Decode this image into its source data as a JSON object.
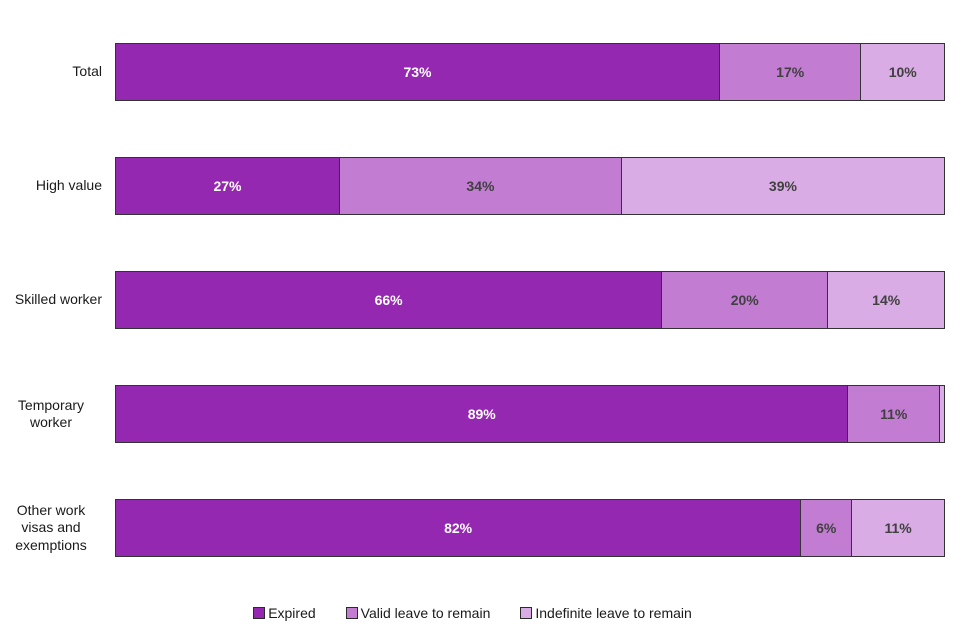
{
  "chart_data": {
    "type": "bar",
    "orientation": "horizontal",
    "stacked": true,
    "unit": "%",
    "title": "",
    "xlabel": "",
    "ylabel": "",
    "xlim": [
      0,
      100
    ],
    "grid": false,
    "legend_position": "bottom",
    "categories": [
      "Total",
      "High value",
      "Skilled worker",
      "Temporary worker",
      "Other work visas and exemptions"
    ],
    "series": [
      {
        "name": "Expired",
        "color": "#9428B1",
        "values": [
          73,
          27,
          66,
          89,
          82
        ]
      },
      {
        "name": "Valid leave to remain",
        "color": "#C27DD3",
        "values": [
          17,
          34,
          20,
          11,
          6
        ]
      },
      {
        "name": "Indefinite leave to remain",
        "color": "#D9ACE5",
        "values": [
          10,
          39,
          14,
          0.5,
          11
        ]
      }
    ],
    "data_labels": {
      "format": "{value}%",
      "min_value_to_show": 2,
      "color_on_dark": "#ffffff",
      "color_on_light": "#404040"
    }
  }
}
